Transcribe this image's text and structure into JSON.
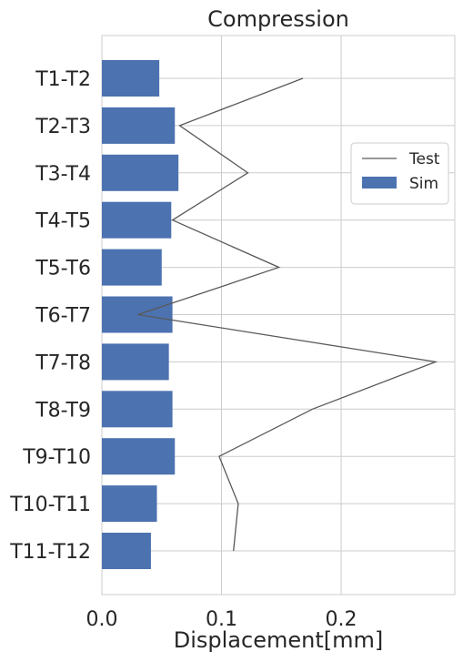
{
  "chart_data": {
    "type": "bar",
    "orientation": "horizontal",
    "title": "Compression",
    "xlabel": "Displacement[mm]",
    "ylabel": "",
    "categories": [
      "T1-T2",
      "T2-T3",
      "T3-T4",
      "T4-T5",
      "T5-T6",
      "T6-T7",
      "T7-T8",
      "T8-T9",
      "T9-T10",
      "T10-T11",
      "T11-T12"
    ],
    "series": [
      {
        "name": "Sim",
        "kind": "bar",
        "color": "#4c72b0",
        "values": [
          0.048,
          0.061,
          0.064,
          0.058,
          0.05,
          0.059,
          0.056,
          0.059,
          0.061,
          0.046,
          0.041
        ]
      },
      {
        "name": "Test",
        "kind": "line",
        "color": "#595959",
        "values": [
          0.168,
          0.065,
          0.122,
          0.059,
          0.148,
          0.03,
          0.279,
          0.176,
          0.098,
          0.114,
          0.11
        ]
      }
    ],
    "xlim": [
      0,
      0.295
    ],
    "xticks": [
      0.0,
      0.1,
      0.2
    ],
    "xtick_labels": [
      "0.0",
      "0.1",
      "0.2"
    ],
    "grid": true,
    "legend_placement": "center-right"
  }
}
